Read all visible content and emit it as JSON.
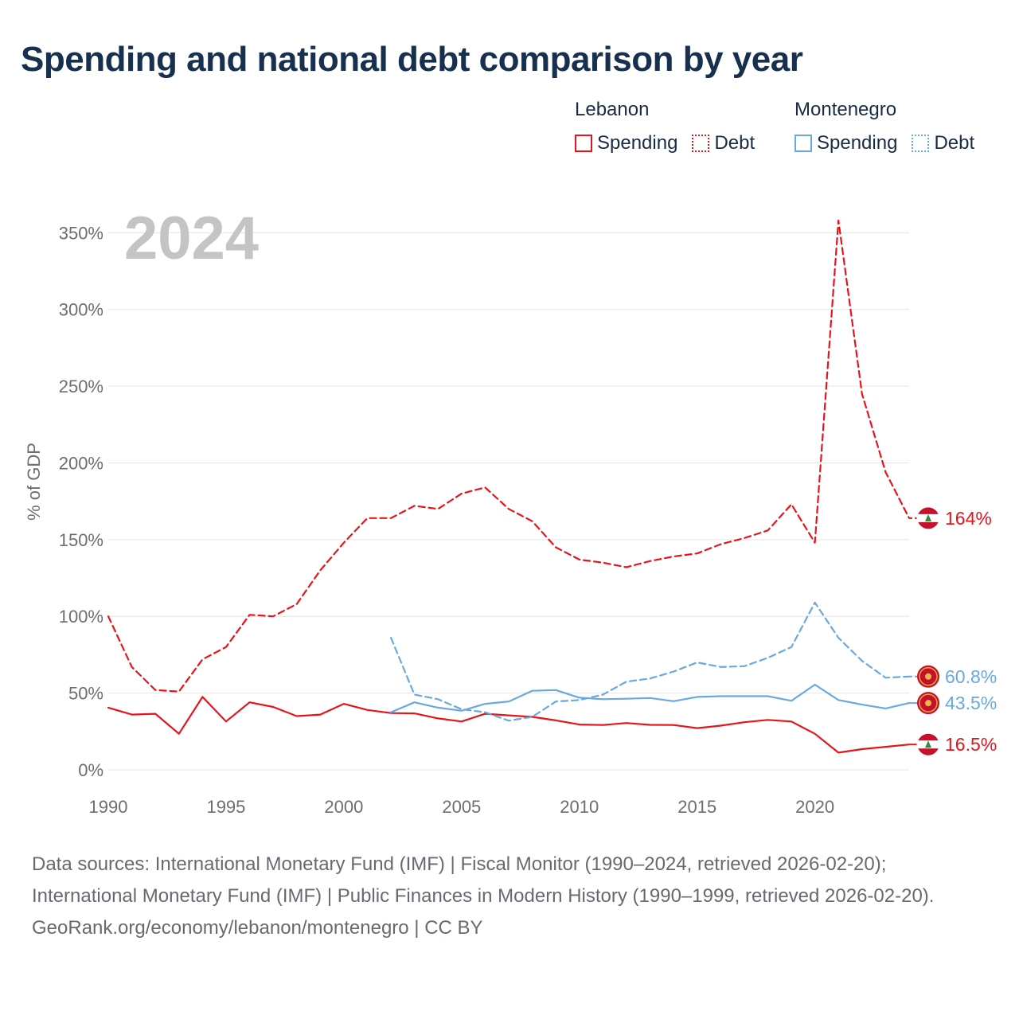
{
  "title": "Spending and national debt comparison by year",
  "legend": {
    "groups": [
      {
        "name": "Lebanon",
        "items": [
          {
            "label": "Spending",
            "color": "#e8141b",
            "style": "solid"
          },
          {
            "label": "Debt",
            "color": "#e8141b",
            "style": "dotted"
          }
        ]
      },
      {
        "name": "Montenegro",
        "items": [
          {
            "label": "Spending",
            "color": "#6aa8e0",
            "style": "solid"
          },
          {
            "label": "Debt",
            "color": "#6aa8e0",
            "style": "dotted"
          }
        ]
      }
    ]
  },
  "footer": {
    "sources": "Data sources: International Monetary Fund (IMF) | Fiscal Monitor (1990–2024, retrieved 2026-02-20); International Monetary Fund (IMF) | Public Finances in Modern History (1990–1999, retrieved 2026-02-20).",
    "credit": "GeoRank.org/economy/lebanon/montenegro | CC BY"
  },
  "chart_data": {
    "type": "line",
    "title": "Spending and national debt comparison by year",
    "year_watermark": "2024",
    "ylabel": "% of GDP",
    "xlabel": "",
    "xlim": [
      1990,
      2024
    ],
    "ylim": [
      0,
      360
    ],
    "x_ticks": [
      1990,
      1995,
      2000,
      2005,
      2010,
      2015,
      2020
    ],
    "y_ticks": [
      0,
      50,
      100,
      150,
      200,
      250,
      300,
      350
    ],
    "y_tick_labels": [
      "0%",
      "50%",
      "100%",
      "150%",
      "200%",
      "250%",
      "300%",
      "350%"
    ],
    "grid": true,
    "series": [
      {
        "name": "Lebanon Debt",
        "color": "#e8141b",
        "dash": true,
        "x": [
          1990,
          1991,
          1992,
          1993,
          1994,
          1995,
          1996,
          1997,
          1998,
          1999,
          2000,
          2001,
          2002,
          2003,
          2004,
          2005,
          2006,
          2007,
          2008,
          2009,
          2010,
          2011,
          2012,
          2013,
          2014,
          2015,
          2016,
          2017,
          2018,
          2019,
          2020,
          2021,
          2022,
          2023,
          2024
        ],
        "values": [
          100,
          67,
          52,
          51,
          72,
          80,
          101,
          100,
          108,
          130,
          148,
          164,
          164,
          172,
          170,
          180,
          184,
          170,
          162,
          145,
          137,
          135,
          132,
          136,
          139,
          141,
          147,
          151,
          156,
          173,
          148,
          358,
          245,
          194,
          164
        ],
        "end_label": "164%"
      },
      {
        "name": "Lebanon Spending",
        "color": "#e8141b",
        "dash": false,
        "x": [
          1990,
          1991,
          1992,
          1993,
          1994,
          1995,
          1996,
          1997,
          1998,
          1999,
          2000,
          2001,
          2002,
          2003,
          2004,
          2005,
          2006,
          2007,
          2008,
          2009,
          2010,
          2011,
          2012,
          2013,
          2014,
          2015,
          2016,
          2017,
          2018,
          2019,
          2020,
          2021,
          2022,
          2023,
          2024
        ],
        "values": [
          40.5,
          36,
          36.5,
          23.5,
          47.5,
          31.5,
          44,
          41,
          35,
          36,
          43,
          39,
          37,
          36.8,
          33.5,
          31.5,
          36.5,
          35.5,
          34.5,
          32.2,
          29.5,
          29.2,
          30.5,
          29.3,
          29.2,
          27.2,
          28.8,
          31,
          32.5,
          31.5,
          23.5,
          11.2,
          13.5,
          15,
          16.5
        ],
        "end_label": "16.5%"
      },
      {
        "name": "Montenegro Debt",
        "color": "#6aa8e0",
        "dash": true,
        "x": [
          2002,
          2003,
          2004,
          2005,
          2006,
          2007,
          2008,
          2009,
          2010,
          2011,
          2012,
          2013,
          2014,
          2015,
          2016,
          2017,
          2018,
          2019,
          2020,
          2021,
          2022,
          2023,
          2024
        ],
        "values": [
          86,
          49,
          46,
          39.5,
          37.5,
          32,
          34.5,
          44.5,
          45.5,
          49,
          57.5,
          59.5,
          64,
          70,
          67,
          67.5,
          73,
          80,
          109,
          86,
          71,
          60,
          60.8
        ],
        "end_label": "60.8%"
      },
      {
        "name": "Montenegro Spending",
        "color": "#6aa8e0",
        "dash": false,
        "x": [
          2002,
          2003,
          2004,
          2005,
          2006,
          2007,
          2008,
          2009,
          2010,
          2011,
          2012,
          2013,
          2014,
          2015,
          2016,
          2017,
          2018,
          2019,
          2020,
          2021,
          2022,
          2023,
          2024
        ],
        "values": [
          37.5,
          44,
          40.5,
          38.5,
          43,
          44.5,
          51.5,
          52,
          47,
          46,
          46.3,
          46.8,
          44.7,
          47.5,
          48,
          48,
          48,
          45,
          55.5,
          45.5,
          42.5,
          40,
          43.5
        ],
        "end_label": "43.5%"
      }
    ],
    "end_markers": [
      {
        "series": "Lebanon Debt",
        "icon": "lebanon-flag-icon"
      },
      {
        "series": "Montenegro Debt",
        "icon": "montenegro-flag-icon"
      },
      {
        "series": "Montenegro Spending",
        "icon": "montenegro-flag-icon"
      },
      {
        "series": "Lebanon Spending",
        "icon": "lebanon-flag-icon"
      }
    ]
  }
}
